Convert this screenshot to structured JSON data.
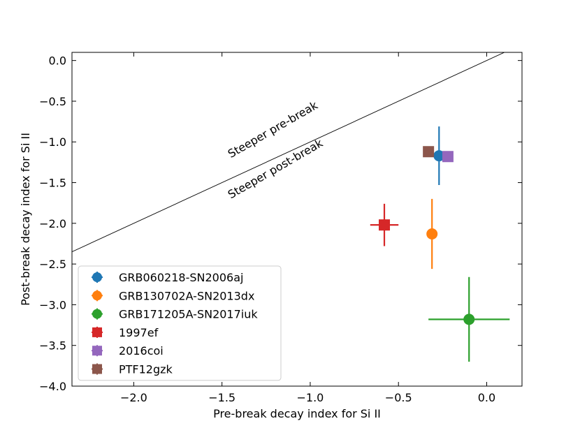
{
  "chart_data": {
    "type": "scatter",
    "title": "",
    "xlabel": "Pre-break decay index for Si II",
    "ylabel": "Post-break decay index for Si II",
    "xlim": [
      -2.35,
      0.2
    ],
    "ylim": [
      -4.0,
      0.1
    ],
    "xticks": [
      -2.0,
      -1.5,
      -1.0,
      -0.5,
      0.0
    ],
    "xtick_labels": [
      "−2.0",
      "−1.5",
      "−1.0",
      "−0.5",
      "0.0"
    ],
    "yticks": [
      0.0,
      -0.5,
      -1.0,
      -1.5,
      -2.0,
      -2.5,
      -3.0,
      -3.5,
      -4.0
    ],
    "ytick_labels": [
      "0.0",
      "−0.5",
      "−1.0",
      "−1.5",
      "−2.0",
      "−2.5",
      "−3.0",
      "−3.5",
      "−4.0"
    ],
    "grid": false,
    "legend_position": "lower-left",
    "reference_line": {
      "label": "y = x",
      "x": [
        -2.35,
        0.2
      ],
      "y": [
        -2.35,
        0.2
      ]
    },
    "annotations": [
      {
        "text": "Steeper pre-break",
        "x": -1.45,
        "y": -1.2,
        "rotation": 30
      },
      {
        "text": "Steeper post-break",
        "x": -1.45,
        "y": -1.7,
        "rotation": 30
      }
    ],
    "series": [
      {
        "name": "GRB060218-SN2006aj",
        "marker": "circle",
        "color": "#1f77b4",
        "x": -0.27,
        "y": -1.17,
        "xerr": 0.0,
        "yerr": 0.36
      },
      {
        "name": "GRB130702A-SN2013dx",
        "marker": "circle",
        "color": "#ff7f0e",
        "x": -0.31,
        "y": -2.13,
        "xerr": 0.0,
        "yerr": 0.43
      },
      {
        "name": "GRB171205A-SN2017iuk",
        "marker": "circle",
        "color": "#2ca02c",
        "x": -0.1,
        "y": -3.18,
        "xerr": 0.23,
        "yerr": 0.52
      },
      {
        "name": "1997ef",
        "marker": "square",
        "color": "#d62728",
        "x": -0.58,
        "y": -2.02,
        "xerr": 0.08,
        "yerr": 0.26
      },
      {
        "name": "2016coi",
        "marker": "square",
        "color": "#9467bd",
        "x": -0.22,
        "y": -1.18,
        "xerr": 0.0,
        "yerr": 0.0
      },
      {
        "name": "PTF12gzk",
        "marker": "square",
        "color": "#8c564b",
        "x": -0.33,
        "y": -1.12,
        "xerr": 0.0,
        "yerr": 0.0
      }
    ]
  }
}
